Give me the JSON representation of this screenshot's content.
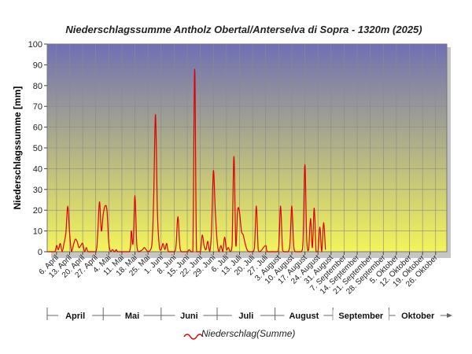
{
  "chart_data": {
    "type": "line",
    "title": "Niederschlagssumme Antholz Obertal/Anterselva di Sopra - 1320m (2025)",
    "ylabel": "Niederschlagssumme [mm]",
    "xlabel": "",
    "ylim": [
      0,
      100
    ],
    "yticks": [
      0,
      10,
      20,
      30,
      40,
      50,
      60,
      70,
      80,
      90,
      100
    ],
    "grid": true,
    "legend_position": "bottom",
    "x_start": "2025-04-01",
    "x_end": "2025-10-31",
    "x_tick_labels": [
      "6. April",
      "13. April",
      "20. April",
      "27. April",
      "4. Mai",
      "11. Mai",
      "18. Mai",
      "25. Mai",
      "1. Juni",
      "8. Juni",
      "15. Juni",
      "22. Juni",
      "29. Juni",
      "6. Juli",
      "13. Juli",
      "20. Juli",
      "27. Juli",
      "3. August",
      "10. August",
      "17. August",
      "24. August",
      "31. August",
      "7. September",
      "14. September",
      "21. September",
      "28. September",
      "5. Oktober",
      "12. Oktober",
      "19. Oktober",
      "26. Oktober"
    ],
    "months": [
      "April",
      "Mai",
      "Juni",
      "Juli",
      "August",
      "September",
      "Oktober"
    ],
    "colors": {
      "series": "#dd0000",
      "plot_top": "#6f6fb5",
      "plot_bottom": "#f4f45a"
    },
    "series": [
      {
        "name": "Niederschlag(Summe)",
        "points": [
          [
            "2025-04-01",
            0
          ],
          [
            "2025-04-05",
            0
          ],
          [
            "2025-04-06",
            3
          ],
          [
            "2025-04-07",
            1
          ],
          [
            "2025-04-08",
            4
          ],
          [
            "2025-04-09",
            0
          ],
          [
            "2025-04-10",
            4
          ],
          [
            "2025-04-11",
            9
          ],
          [
            "2025-04-12",
            22
          ],
          [
            "2025-04-13",
            9
          ],
          [
            "2025-04-14",
            0
          ],
          [
            "2025-04-15",
            3
          ],
          [
            "2025-04-16",
            6
          ],
          [
            "2025-04-17",
            5
          ],
          [
            "2025-04-18",
            2
          ],
          [
            "2025-04-19",
            3
          ],
          [
            "2025-04-20",
            4
          ],
          [
            "2025-04-21",
            0
          ],
          [
            "2025-04-22",
            2
          ],
          [
            "2025-04-23",
            0
          ],
          [
            "2025-04-27",
            0
          ],
          [
            "2025-04-28",
            8
          ],
          [
            "2025-04-29",
            24
          ],
          [
            "2025-04-30",
            10
          ],
          [
            "2025-05-01",
            18
          ],
          [
            "2025-05-02",
            22
          ],
          [
            "2025-05-03",
            20
          ],
          [
            "2025-05-04",
            4
          ],
          [
            "2025-05-05",
            0
          ],
          [
            "2025-05-06",
            1
          ],
          [
            "2025-05-07",
            0
          ],
          [
            "2025-05-08",
            1
          ],
          [
            "2025-05-09",
            0
          ],
          [
            "2025-05-15",
            0
          ],
          [
            "2025-05-16",
            10
          ],
          [
            "2025-05-17",
            4
          ],
          [
            "2025-05-18",
            27
          ],
          [
            "2025-05-19",
            3
          ],
          [
            "2025-05-20",
            0
          ],
          [
            "2025-05-22",
            1
          ],
          [
            "2025-05-23",
            2
          ],
          [
            "2025-05-24",
            1
          ],
          [
            "2025-05-25",
            0
          ],
          [
            "2025-05-27",
            3
          ],
          [
            "2025-05-28",
            25
          ],
          [
            "2025-05-29",
            66
          ],
          [
            "2025-05-30",
            20
          ],
          [
            "2025-05-31",
            3
          ],
          [
            "2025-06-01",
            1
          ],
          [
            "2025-06-02",
            4
          ],
          [
            "2025-06-03",
            1
          ],
          [
            "2025-06-04",
            4
          ],
          [
            "2025-06-05",
            0
          ],
          [
            "2025-06-08",
            0
          ],
          [
            "2025-06-09",
            3
          ],
          [
            "2025-06-10",
            17
          ],
          [
            "2025-06-11",
            3
          ],
          [
            "2025-06-12",
            0
          ],
          [
            "2025-06-15",
            0
          ],
          [
            "2025-06-16",
            1
          ],
          [
            "2025-06-17",
            0
          ],
          [
            "2025-06-18",
            0
          ],
          [
            "2025-06-19",
            88
          ],
          [
            "2025-06-20",
            0
          ],
          [
            "2025-06-22",
            0
          ],
          [
            "2025-06-23",
            8
          ],
          [
            "2025-06-24",
            3
          ],
          [
            "2025-06-25",
            1
          ],
          [
            "2025-06-26",
            5
          ],
          [
            "2025-06-27",
            0
          ],
          [
            "2025-06-28",
            10
          ],
          [
            "2025-06-29",
            39
          ],
          [
            "2025-06-30",
            20
          ],
          [
            "2025-07-01",
            5
          ],
          [
            "2025-07-02",
            0
          ],
          [
            "2025-07-03",
            3
          ],
          [
            "2025-07-04",
            0
          ],
          [
            "2025-07-05",
            7
          ],
          [
            "2025-07-06",
            1
          ],
          [
            "2025-07-07",
            2
          ],
          [
            "2025-07-08",
            0
          ],
          [
            "2025-07-09",
            3
          ],
          [
            "2025-07-10",
            46
          ],
          [
            "2025-07-11",
            3
          ],
          [
            "2025-07-12",
            20
          ],
          [
            "2025-07-13",
            19
          ],
          [
            "2025-07-14",
            10
          ],
          [
            "2025-07-15",
            8
          ],
          [
            "2025-07-16",
            4
          ],
          [
            "2025-07-17",
            1
          ],
          [
            "2025-07-18",
            0
          ],
          [
            "2025-07-20",
            0
          ],
          [
            "2025-07-21",
            2
          ],
          [
            "2025-07-22",
            22
          ],
          [
            "2025-07-23",
            1
          ],
          [
            "2025-07-24",
            0
          ],
          [
            "2025-07-27",
            3
          ],
          [
            "2025-07-28",
            0
          ],
          [
            "2025-08-02",
            0
          ],
          [
            "2025-08-03",
            2
          ],
          [
            "2025-08-04",
            22
          ],
          [
            "2025-08-05",
            1
          ],
          [
            "2025-08-06",
            0
          ],
          [
            "2025-08-08",
            0
          ],
          [
            "2025-08-09",
            4
          ],
          [
            "2025-08-10",
            22
          ],
          [
            "2025-08-11",
            3
          ],
          [
            "2025-08-12",
            0
          ],
          [
            "2025-08-15",
            0
          ],
          [
            "2025-08-16",
            5
          ],
          [
            "2025-08-17",
            42
          ],
          [
            "2025-08-18",
            5
          ],
          [
            "2025-08-19",
            1
          ],
          [
            "2025-08-20",
            16
          ],
          [
            "2025-08-21",
            2
          ],
          [
            "2025-08-22",
            21
          ],
          [
            "2025-08-23",
            0
          ],
          [
            "2025-08-24",
            0
          ],
          [
            "2025-08-25",
            12
          ],
          [
            "2025-08-26",
            0
          ],
          [
            "2025-08-27",
            14
          ],
          [
            "2025-08-28",
            1
          ]
        ]
      }
    ]
  }
}
